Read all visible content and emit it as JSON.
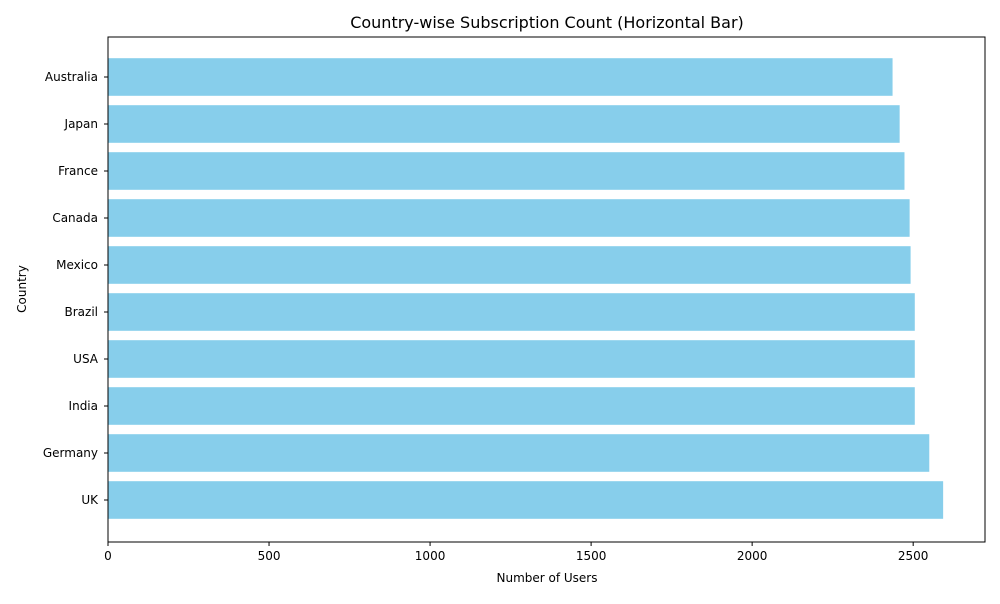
{
  "chart_data": {
    "type": "bar",
    "orientation": "horizontal",
    "title": "Country-wise Subscription Count (Horizontal Bar)",
    "xlabel": "Number of Users",
    "ylabel": "Country",
    "categories": [
      "UK",
      "Germany",
      "India",
      "USA",
      "Brazil",
      "Mexico",
      "Canada",
      "France",
      "Japan",
      "Australia"
    ],
    "values": [
      2593,
      2550,
      2505,
      2505,
      2505,
      2492,
      2489,
      2473,
      2458,
      2436
    ],
    "xlim": [
      0,
      2723
    ],
    "xticks": [
      "0",
      "500",
      "1000",
      "1500",
      "2000",
      "2500"
    ],
    "bar_color": "#87ceeb",
    "grid": false,
    "legend": "none"
  }
}
